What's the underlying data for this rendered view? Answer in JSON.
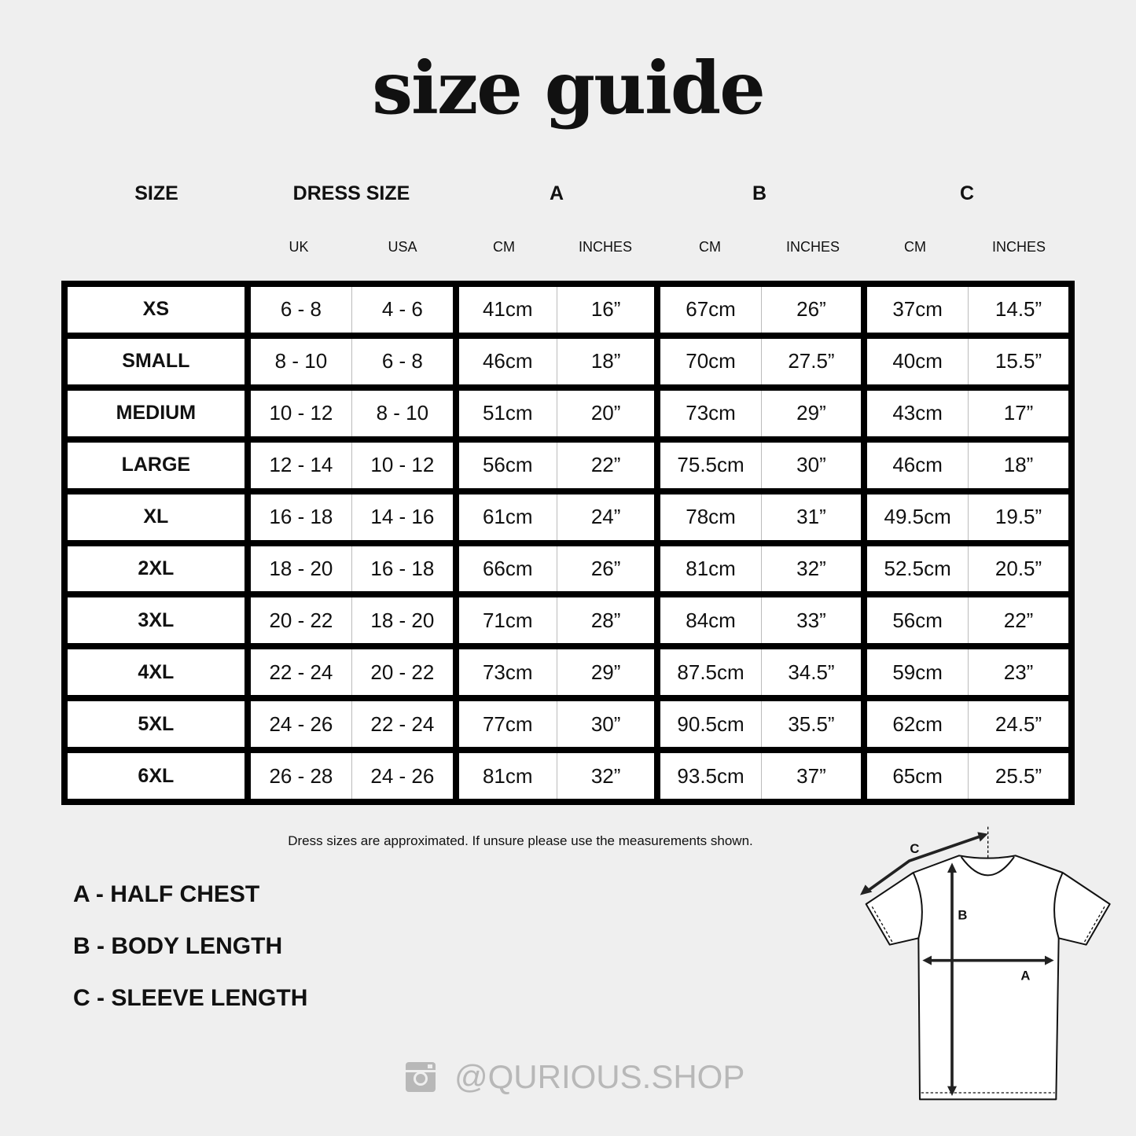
{
  "title": "size guide",
  "headers": {
    "size": "SIZE",
    "dress_size": "DRESS SIZE",
    "a": "A",
    "b": "B",
    "c": "C"
  },
  "subheaders": {
    "uk": "UK",
    "usa": "USA",
    "a_cm": "CM",
    "a_in": "INCHES",
    "b_cm": "CM",
    "b_in": "INCHES",
    "c_cm": "CM",
    "c_in": "INCHES"
  },
  "rows": [
    {
      "size": "XS",
      "uk": "6 - 8",
      "usa": "4 - 6",
      "a_cm": "41cm",
      "a_in": "16”",
      "b_cm": "67cm",
      "b_in": "26”",
      "c_cm": "37cm",
      "c_in": "14.5”"
    },
    {
      "size": "SMALL",
      "uk": "8 - 10",
      "usa": "6 - 8",
      "a_cm": "46cm",
      "a_in": "18”",
      "b_cm": "70cm",
      "b_in": "27.5”",
      "c_cm": "40cm",
      "c_in": "15.5”"
    },
    {
      "size": "MEDIUM",
      "uk": "10 - 12",
      "usa": "8 - 10",
      "a_cm": "51cm",
      "a_in": "20”",
      "b_cm": "73cm",
      "b_in": "29”",
      "c_cm": "43cm",
      "c_in": "17”"
    },
    {
      "size": "LARGE",
      "uk": "12 - 14",
      "usa": "10 - 12",
      "a_cm": "56cm",
      "a_in": "22”",
      "b_cm": "75.5cm",
      "b_in": "30”",
      "c_cm": "46cm",
      "c_in": "18”"
    },
    {
      "size": "XL",
      "uk": "16 - 18",
      "usa": "14 - 16",
      "a_cm": "61cm",
      "a_in": "24”",
      "b_cm": "78cm",
      "b_in": "31”",
      "c_cm": "49.5cm",
      "c_in": "19.5”"
    },
    {
      "size": "2XL",
      "uk": "18 - 20",
      "usa": "16 - 18",
      "a_cm": "66cm",
      "a_in": "26”",
      "b_cm": "81cm",
      "b_in": "32”",
      "c_cm": "52.5cm",
      "c_in": "20.5”"
    },
    {
      "size": "3XL",
      "uk": "20 - 22",
      "usa": "18 - 20",
      "a_cm": "71cm",
      "a_in": "28”",
      "b_cm": "84cm",
      "b_in": "33”",
      "c_cm": "56cm",
      "c_in": "22”"
    },
    {
      "size": "4XL",
      "uk": "22 - 24",
      "usa": "20 - 22",
      "a_cm": "73cm",
      "a_in": "29”",
      "b_cm": "87.5cm",
      "b_in": "34.5”",
      "c_cm": "59cm",
      "c_in": "23”"
    },
    {
      "size": "5XL",
      "uk": "24 - 26",
      "usa": "22 - 24",
      "a_cm": "77cm",
      "a_in": "30”",
      "b_cm": "90.5cm",
      "b_in": "35.5”",
      "c_cm": "62cm",
      "c_in": "24.5”"
    },
    {
      "size": "6XL",
      "uk": "26 - 28",
      "usa": "24 - 26",
      "a_cm": "81cm",
      "a_in": "32”",
      "b_cm": "93.5cm",
      "b_in": "37”",
      "c_cm": "65cm",
      "c_in": "25.5”"
    }
  ],
  "note": "Dress sizes are approximated. If unsure please use the measurements shown.",
  "legend": [
    "A - HALF CHEST",
    "B - BODY LENGTH",
    "C - SLEEVE LENGTH"
  ],
  "diagram_labels": {
    "a": "A",
    "b": "B",
    "c": "C"
  },
  "social": {
    "icon": "instagram-icon",
    "handle": "@QURIOUS.SHOP",
    "color": "#b8b8b8"
  }
}
